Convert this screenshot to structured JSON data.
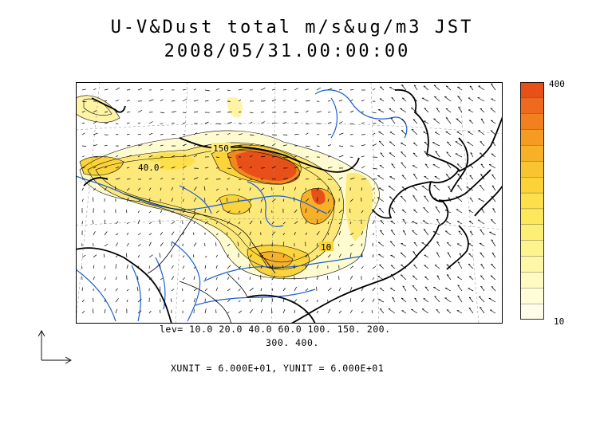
{
  "title_line1": "U-V&Dust total m/s&ug/m3 JST",
  "title_line2": "2008/05/31.00:00:00",
  "colorbar": {
    "max_label": "400",
    "min_label": "10",
    "colors": [
      "#e8501a",
      "#ef6a1f",
      "#f2801f",
      "#f59a22",
      "#f7b128",
      "#f9c42f",
      "#fbd338",
      "#fcdf4a",
      "#fde85c",
      "#fdef74",
      "#fef48e",
      "#fef7a8",
      "#fffac2",
      "#fffcd8",
      "#fffde8"
    ]
  },
  "contour_labels": [
    "150",
    "40.0",
    "10"
  ],
  "levels_line1": "lev= 10.0 20.0 40.0 60.0 100. 150. 200.",
  "levels_line2": "300. 400.",
  "units_text": "XUNIT = 6.000E+01, YUNIT = 6.000E+01",
  "colors": {
    "coast": "#000000",
    "rivers": "#1a5fd6",
    "frame": "#000000"
  }
}
